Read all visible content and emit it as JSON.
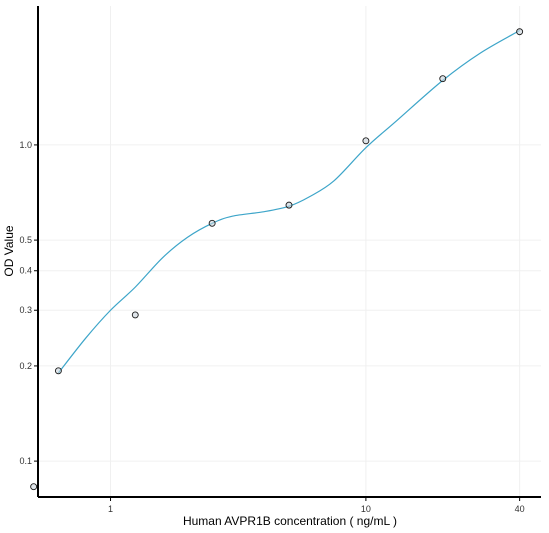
{
  "chart_data": {
    "type": "scatter",
    "xlabel": "Human AVPR1B concentration ( ng/mL )",
    "ylabel": "OD Value",
    "xscale": "log",
    "yscale": "log",
    "xlim": [
      0.52,
      48.5
    ],
    "ylim": [
      0.077,
      2.75
    ],
    "x_ticks": [
      1,
      10,
      40
    ],
    "x_tick_labels": [
      "1",
      "10",
      "40"
    ],
    "y_ticks": [
      0.1,
      0.2,
      0.3,
      0.4,
      0.5,
      1.0
    ],
    "y_tick_labels": [
      "0.1",
      "0.2",
      "0.3",
      "0.4",
      "0.5",
      "1.0"
    ],
    "grid": true,
    "points": [
      {
        "x": 0.5,
        "y": 0.083
      },
      {
        "x": 0.625,
        "y": 0.193
      },
      {
        "x": 1.25,
        "y": 0.29
      },
      {
        "x": 2.5,
        "y": 0.565
      },
      {
        "x": 5,
        "y": 0.645
      },
      {
        "x": 10,
        "y": 1.03
      },
      {
        "x": 20,
        "y": 1.62
      },
      {
        "x": 40,
        "y": 2.28
      }
    ],
    "curve": [
      {
        "x": 0.625,
        "y": 0.19
      },
      {
        "x": 0.8,
        "y": 0.245
      },
      {
        "x": 1.0,
        "y": 0.3
      },
      {
        "x": 1.25,
        "y": 0.355
      },
      {
        "x": 1.6,
        "y": 0.44
      },
      {
        "x": 2.0,
        "y": 0.51
      },
      {
        "x": 2.5,
        "y": 0.565
      },
      {
        "x": 3.0,
        "y": 0.595
      },
      {
        "x": 4.0,
        "y": 0.615
      },
      {
        "x": 5.0,
        "y": 0.64
      },
      {
        "x": 6.0,
        "y": 0.685
      },
      {
        "x": 7.5,
        "y": 0.77
      },
      {
        "x": 10,
        "y": 0.98
      },
      {
        "x": 13,
        "y": 1.18
      },
      {
        "x": 20,
        "y": 1.6
      },
      {
        "x": 28,
        "y": 1.95
      },
      {
        "x": 40,
        "y": 2.3
      }
    ],
    "point_color": "#1a1a1a",
    "point_fill": "#c9d3dc",
    "curve_color": "#3da5c9",
    "axis_color": "#000000",
    "grid_color": "#f0f0f0"
  }
}
